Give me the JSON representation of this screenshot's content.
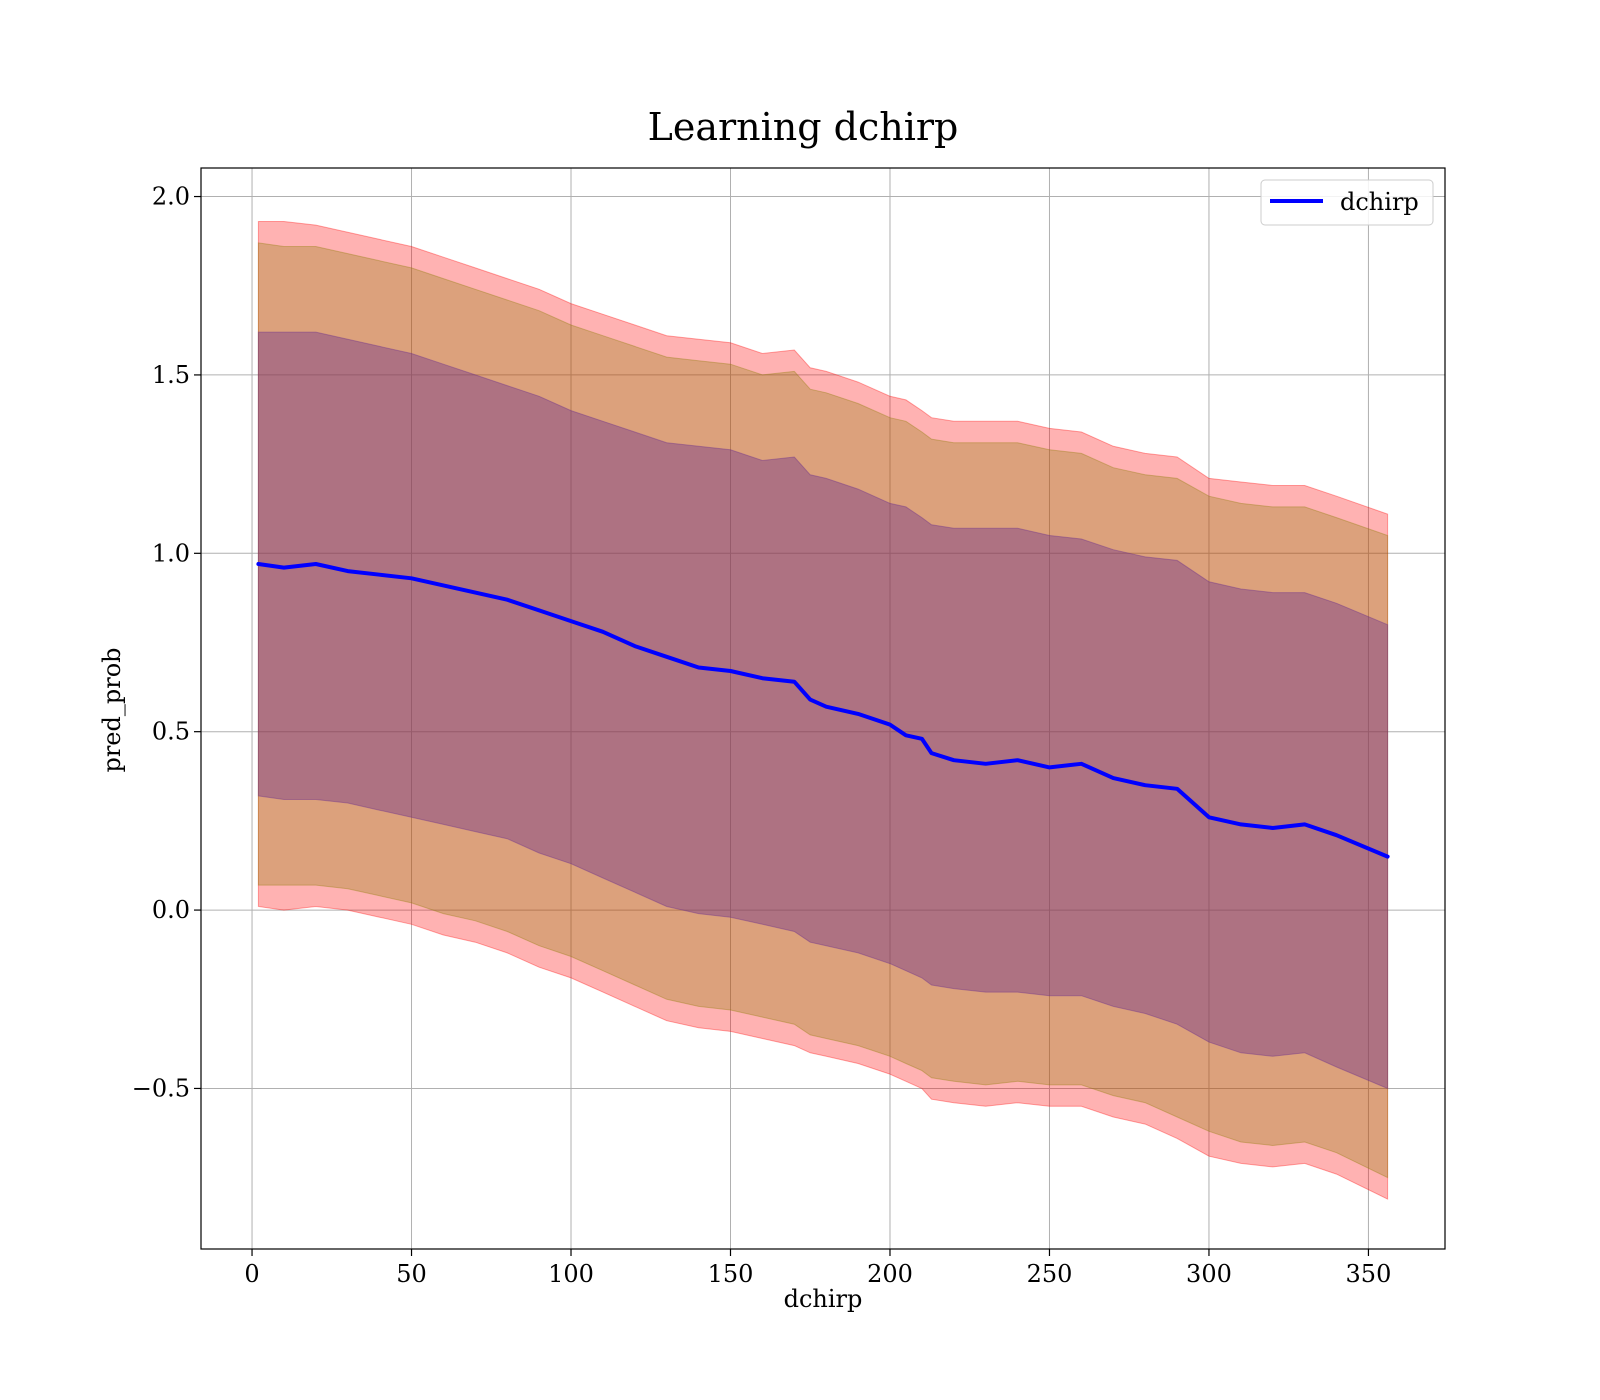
{
  "chart_data": {
    "type": "line",
    "title": "Learning dchirp",
    "xlabel": "dchirp",
    "ylabel": "pred_prob",
    "xlim": [
      -16,
      374
    ],
    "ylim": [
      -0.95,
      2.08
    ],
    "x_ticks": [
      0,
      50,
      100,
      150,
      200,
      250,
      300,
      350
    ],
    "x_tick_labels": [
      "0",
      "50",
      "100",
      "150",
      "200",
      "250",
      "300",
      "350"
    ],
    "y_ticks": [
      -0.5,
      0.0,
      0.5,
      1.0,
      1.5,
      2.0
    ],
    "y_tick_labels": [
      "−0.5",
      "0.0",
      "0.5",
      "1.0",
      "1.5",
      "2.0"
    ],
    "grid": true,
    "legend": {
      "position": "top-right",
      "entries": [
        "dchirp"
      ]
    },
    "colors": {
      "line": "#0000ff",
      "band_outer": "#ff0000",
      "band_middle": "#8c7a00",
      "band_inner": "#6a2e8c",
      "grid": "#b0b0b0"
    },
    "series": [
      {
        "name": "dchirp",
        "x": [
          2,
          10,
          20,
          30,
          40,
          50,
          60,
          70,
          80,
          90,
          100,
          110,
          120,
          130,
          140,
          150,
          160,
          170,
          175,
          180,
          190,
          200,
          205,
          210,
          213,
          220,
          230,
          240,
          250,
          260,
          270,
          280,
          290,
          300,
          310,
          320,
          330,
          340,
          356
        ],
        "y": [
          0.97,
          0.96,
          0.97,
          0.95,
          0.94,
          0.93,
          0.91,
          0.89,
          0.87,
          0.84,
          0.81,
          0.78,
          0.74,
          0.71,
          0.68,
          0.67,
          0.65,
          0.64,
          0.59,
          0.57,
          0.55,
          0.52,
          0.49,
          0.48,
          0.44,
          0.42,
          0.41,
          0.42,
          0.4,
          0.41,
          0.37,
          0.35,
          0.34,
          0.26,
          0.24,
          0.23,
          0.24,
          0.21,
          0.15
        ]
      }
    ],
    "bands": [
      {
        "level": "outer",
        "upper": [
          1.93,
          1.93,
          1.92,
          1.9,
          1.88,
          1.86,
          1.83,
          1.8,
          1.77,
          1.74,
          1.7,
          1.67,
          1.64,
          1.61,
          1.6,
          1.59,
          1.56,
          1.57,
          1.52,
          1.51,
          1.48,
          1.44,
          1.43,
          1.4,
          1.38,
          1.37,
          1.37,
          1.37,
          1.35,
          1.34,
          1.3,
          1.28,
          1.27,
          1.21,
          1.2,
          1.19,
          1.19,
          1.16,
          1.11
        ],
        "lower": [
          0.01,
          0.0,
          0.01,
          0.0,
          -0.02,
          -0.04,
          -0.07,
          -0.09,
          -0.12,
          -0.16,
          -0.19,
          -0.23,
          -0.27,
          -0.31,
          -0.33,
          -0.34,
          -0.36,
          -0.38,
          -0.4,
          -0.41,
          -0.43,
          -0.46,
          -0.48,
          -0.5,
          -0.53,
          -0.54,
          -0.55,
          -0.54,
          -0.55,
          -0.55,
          -0.58,
          -0.6,
          -0.64,
          -0.69,
          -0.71,
          -0.72,
          -0.71,
          -0.74,
          -0.81
        ]
      },
      {
        "level": "middle",
        "upper": [
          1.87,
          1.86,
          1.86,
          1.84,
          1.82,
          1.8,
          1.77,
          1.74,
          1.71,
          1.68,
          1.64,
          1.61,
          1.58,
          1.55,
          1.54,
          1.53,
          1.5,
          1.51,
          1.46,
          1.45,
          1.42,
          1.38,
          1.37,
          1.34,
          1.32,
          1.31,
          1.31,
          1.31,
          1.29,
          1.28,
          1.24,
          1.22,
          1.21,
          1.16,
          1.14,
          1.13,
          1.13,
          1.1,
          1.05
        ]
      },
      {
        "level": "middle-lower",
        "lower": [
          0.07,
          0.07,
          0.07,
          0.06,
          0.04,
          0.02,
          -0.01,
          -0.03,
          -0.06,
          -0.1,
          -0.13,
          -0.17,
          -0.21,
          -0.25,
          -0.27,
          -0.28,
          -0.3,
          -0.32,
          -0.35,
          -0.36,
          -0.38,
          -0.41,
          -0.43,
          -0.45,
          -0.47,
          -0.48,
          -0.49,
          -0.48,
          -0.49,
          -0.49,
          -0.52,
          -0.54,
          -0.58,
          -0.62,
          -0.65,
          -0.66,
          -0.65,
          -0.68,
          -0.75
        ]
      },
      {
        "level": "inner",
        "upper": [
          1.62,
          1.62,
          1.62,
          1.6,
          1.58,
          1.56,
          1.53,
          1.5,
          1.47,
          1.44,
          1.4,
          1.37,
          1.34,
          1.31,
          1.3,
          1.29,
          1.26,
          1.27,
          1.22,
          1.21,
          1.18,
          1.14,
          1.13,
          1.1,
          1.08,
          1.07,
          1.07,
          1.07,
          1.05,
          1.04,
          1.01,
          0.99,
          0.98,
          0.92,
          0.9,
          0.89,
          0.89,
          0.86,
          0.8
        ],
        "lower": [
          0.32,
          0.31,
          0.31,
          0.3,
          0.28,
          0.26,
          0.24,
          0.22,
          0.2,
          0.16,
          0.13,
          0.09,
          0.05,
          0.01,
          -0.01,
          -0.02,
          -0.04,
          -0.06,
          -0.09,
          -0.1,
          -0.12,
          -0.15,
          -0.17,
          -0.19,
          -0.21,
          -0.22,
          -0.23,
          -0.23,
          -0.24,
          -0.24,
          -0.27,
          -0.29,
          -0.32,
          -0.37,
          -0.4,
          -0.41,
          -0.4,
          -0.44,
          -0.5
        ]
      }
    ]
  }
}
